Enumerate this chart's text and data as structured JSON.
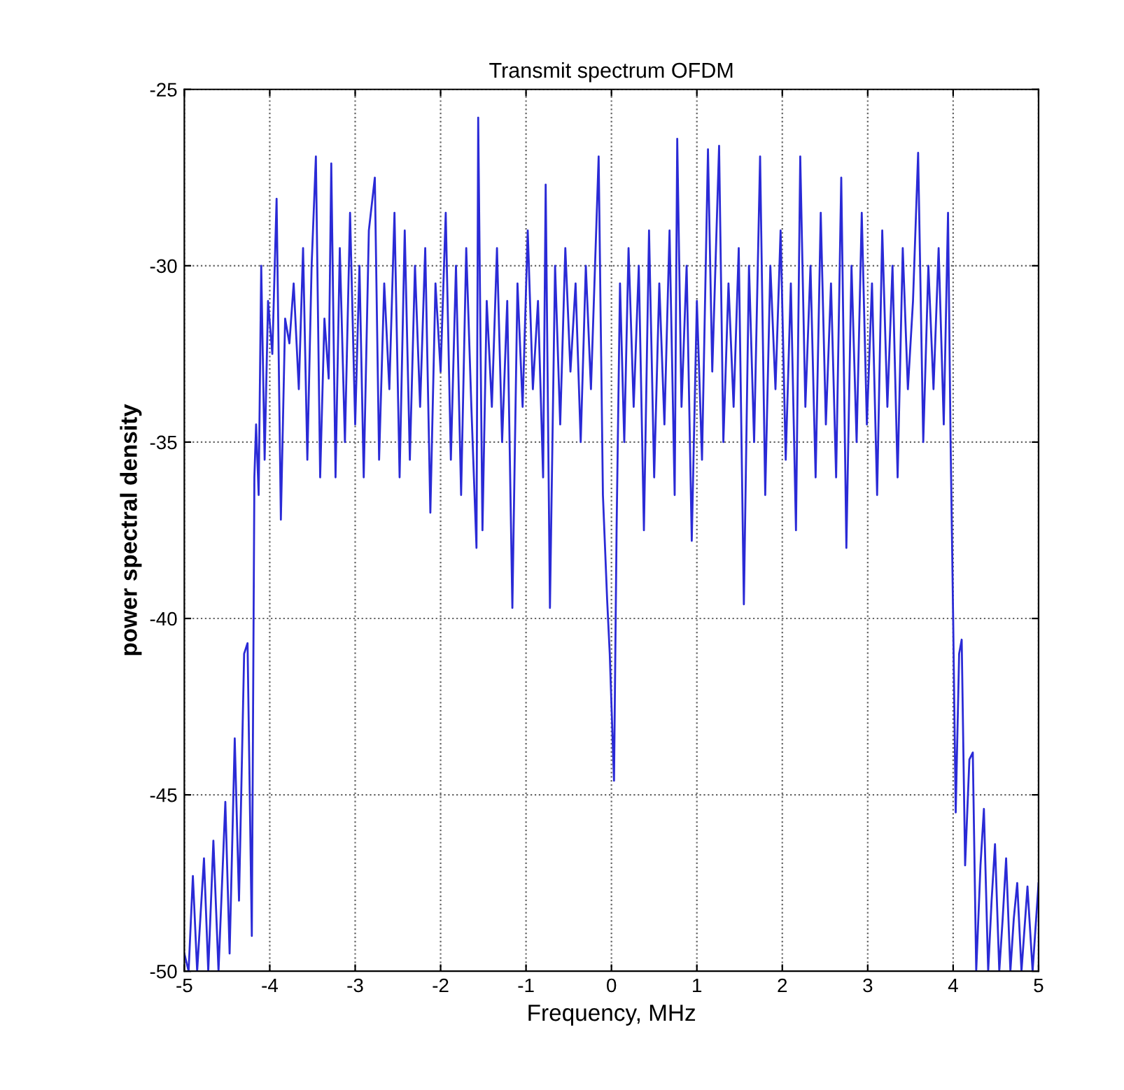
{
  "chart_data": {
    "type": "line",
    "title": "Transmit spectrum OFDM",
    "xlabel": "Frequency, MHz",
    "ylabel": "power spectral density",
    "xlim": [
      -5,
      5
    ],
    "ylim": [
      -50,
      -25
    ],
    "xticks": [
      -5,
      -4,
      -3,
      -2,
      -1,
      0,
      1,
      2,
      3,
      4,
      5
    ],
    "yticks": [
      -50,
      -45,
      -40,
      -35,
      -30,
      -25
    ],
    "grid": true,
    "marker": "none",
    "line_style": "solid",
    "series": [
      {
        "color": "#2a2ad6",
        "x": [
          -5.0,
          -4.95,
          -4.9,
          -4.85,
          -4.77,
          -4.72,
          -4.66,
          -4.6,
          -4.52,
          -4.47,
          -4.41,
          -4.36,
          -4.3,
          -4.26,
          -4.21,
          -4.18,
          -4.16,
          -4.13,
          -4.1,
          -4.06,
          -4.02,
          -3.97,
          -3.92,
          -3.87,
          -3.82,
          -3.77,
          -3.72,
          -3.66,
          -3.61,
          -3.56,
          -3.51,
          -3.46,
          -3.41,
          -3.36,
          -3.31,
          -3.28,
          -3.23,
          -3.18,
          -3.12,
          -3.06,
          -3.0,
          -2.95,
          -2.9,
          -2.84,
          -2.77,
          -2.72,
          -2.66,
          -2.6,
          -2.54,
          -2.48,
          -2.42,
          -2.36,
          -2.3,
          -2.24,
          -2.18,
          -2.12,
          -2.06,
          -2.0,
          -1.94,
          -1.88,
          -1.82,
          -1.76,
          -1.7,
          -1.64,
          -1.58,
          -1.56,
          -1.51,
          -1.46,
          -1.4,
          -1.34,
          -1.28,
          -1.22,
          -1.16,
          -1.1,
          -1.04,
          -0.98,
          -0.92,
          -0.86,
          -0.8,
          -0.77,
          -0.72,
          -0.66,
          -0.6,
          -0.54,
          -0.48,
          -0.42,
          -0.36,
          -0.3,
          -0.24,
          -0.15,
          -0.1,
          -0.05,
          -0.02,
          0.03,
          0.06,
          0.1,
          0.15,
          0.2,
          0.26,
          0.32,
          0.38,
          0.44,
          0.5,
          0.56,
          0.62,
          0.68,
          0.74,
          0.77,
          0.82,
          0.88,
          0.94,
          1.0,
          1.06,
          1.13,
          1.18,
          1.26,
          1.31,
          1.37,
          1.43,
          1.49,
          1.55,
          1.61,
          1.67,
          1.74,
          1.8,
          1.86,
          1.92,
          1.98,
          2.04,
          2.1,
          2.16,
          2.21,
          2.27,
          2.33,
          2.39,
          2.45,
          2.51,
          2.57,
          2.63,
          2.69,
          2.75,
          2.81,
          2.87,
          2.93,
          2.99,
          3.05,
          3.11,
          3.17,
          3.23,
          3.29,
          3.35,
          3.41,
          3.47,
          3.53,
          3.59,
          3.65,
          3.71,
          3.77,
          3.83,
          3.89,
          3.94,
          3.97,
          4.0,
          4.03,
          4.07,
          4.1,
          4.14,
          4.19,
          4.23,
          4.27,
          4.32,
          4.36,
          4.41,
          4.45,
          4.49,
          4.54,
          4.58,
          4.62,
          4.67,
          4.71,
          4.75,
          4.8,
          4.87,
          4.93,
          5.0
        ],
        "values": [
          -49.5,
          -50,
          -47.3,
          -50,
          -46.8,
          -50,
          -46.3,
          -50,
          -45.2,
          -49.5,
          -43.4,
          -48,
          -41,
          -40.7,
          -49,
          -36,
          -34.5,
          -36.5,
          -30,
          -35.5,
          -31,
          -32.5,
          -28.1,
          -37.2,
          -31.5,
          -32.2,
          -30.5,
          -33.5,
          -29.5,
          -35.5,
          -30,
          -26.9,
          -36,
          -31.5,
          -33.2,
          -27.1,
          -36,
          -29.5,
          -35,
          -28.5,
          -34.5,
          -30,
          -36,
          -29,
          -27.5,
          -35.5,
          -30.5,
          -33.5,
          -28.5,
          -36,
          -29,
          -35.5,
          -30,
          -34,
          -29.5,
          -37,
          -30.5,
          -33,
          -28.5,
          -35.5,
          -30,
          -36.5,
          -29.5,
          -34,
          -38,
          -25.8,
          -37.5,
          -31,
          -34,
          -29.5,
          -35,
          -31,
          -39.7,
          -30.5,
          -34,
          -29,
          -33.5,
          -31,
          -36,
          -27.7,
          -39.7,
          -30,
          -34.5,
          -29.5,
          -33,
          -30.5,
          -35,
          -30,
          -33.5,
          -26.9,
          -36.5,
          -39.5,
          -41,
          -44.6,
          -37.5,
          -30.5,
          -35,
          -29.5,
          -34,
          -30,
          -37.5,
          -29,
          -36,
          -30.5,
          -34.5,
          -29,
          -36.5,
          -26.4,
          -34,
          -30,
          -37.8,
          -31,
          -35.5,
          -26.7,
          -33,
          -26.6,
          -35,
          -30.5,
          -34,
          -29.5,
          -39.6,
          -30,
          -35,
          -26.9,
          -36.5,
          -30,
          -33.5,
          -29,
          -35.5,
          -30.5,
          -37.5,
          -26.9,
          -34,
          -30,
          -36,
          -28.5,
          -34.5,
          -30.5,
          -36,
          -27.5,
          -38,
          -30,
          -35,
          -28.5,
          -34.5,
          -30.5,
          -36.5,
          -29,
          -34,
          -30,
          -36,
          -29.5,
          -33.5,
          -31,
          -26.8,
          -35,
          -30,
          -33.5,
          -29.5,
          -34.5,
          -28.5,
          -35,
          -40,
          -45.5,
          -41,
          -40.6,
          -47,
          -44,
          -43.8,
          -50,
          -47,
          -45.4,
          -50,
          -48,
          -46.4,
          -50,
          -48.5,
          -46.8,
          -50,
          -48.5,
          -47.5,
          -50,
          -47.6,
          -50,
          -47.5
        ]
      }
    ]
  }
}
